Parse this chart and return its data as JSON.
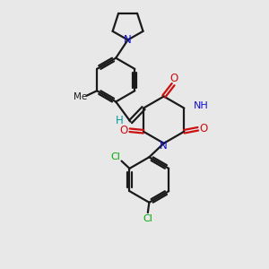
{
  "bg_color": "#e8e8e8",
  "bond_color": "#1a1a1a",
  "n_color": "#1010cc",
  "o_color": "#cc1010",
  "cl_color": "#00aa00",
  "h_color": "#009999",
  "line_width": 1.6,
  "figsize": [
    3.0,
    3.0
  ],
  "dpi": 100,
  "xlim": [
    0,
    10
  ],
  "ylim": [
    0,
    10
  ]
}
